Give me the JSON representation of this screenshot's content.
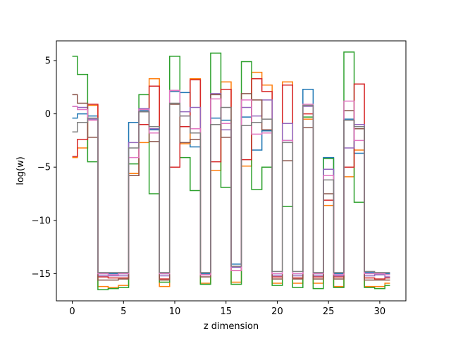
{
  "chart_data": {
    "type": "line",
    "drawstyle": "steps-mid",
    "xlabel": "z dimension",
    "ylabel": "log(w)",
    "xlim": [
      -1.55,
      32.55
    ],
    "ylim": [
      -17.55,
      6.85
    ],
    "xticks": [
      0,
      5,
      10,
      15,
      20,
      25,
      30
    ],
    "yticks": [
      5,
      0,
      -5,
      -10,
      -15
    ],
    "ytick_labels": [
      "5",
      "0",
      "−5",
      "−10",
      "−15"
    ],
    "grid": false,
    "legend": "none",
    "x": [
      0,
      1,
      2,
      3,
      4,
      5,
      6,
      7,
      8,
      9,
      10,
      11,
      12,
      13,
      14,
      15,
      16,
      17,
      18,
      19,
      20,
      21,
      22,
      23,
      24,
      25,
      26,
      27,
      28,
      29,
      30,
      31
    ],
    "series": [
      {
        "color": "#1f77b4",
        "values": [
          -0.4,
          0.0,
          -0.2,
          -15.0,
          -15.0,
          -15.0,
          -0.8,
          0.3,
          -1.5,
          -15.0,
          2.1,
          2.0,
          -3.1,
          -15.0,
          -0.4,
          -0.6,
          -14.1,
          -0.3,
          -3.4,
          -1.6,
          -15.0,
          -2.5,
          -15.0,
          2.3,
          -15.0,
          -4.1,
          -15.0,
          -0.5,
          -3.7,
          -14.9,
          -15.0,
          -15.0
        ]
      },
      {
        "color": "#ff7f0e",
        "values": [
          -4.1,
          -3.2,
          0.8,
          -16.2,
          -16.3,
          -16.1,
          -5.6,
          -2.7,
          3.3,
          -16.2,
          2.2,
          -2.8,
          3.3,
          -15.9,
          -5.3,
          3.0,
          -15.8,
          -4.9,
          3.9,
          2.7,
          -15.9,
          3.0,
          -15.9,
          -0.5,
          -15.9,
          -8.6,
          -16.2,
          -5.9,
          -3.4,
          -16.2,
          -16.2,
          -15.9
        ]
      },
      {
        "color": "#2ca02c",
        "values": [
          5.4,
          3.7,
          -4.5,
          -16.5,
          -16.4,
          -16.3,
          -4.7,
          1.8,
          -7.5,
          -15.8,
          5.4,
          -4.1,
          -7.2,
          -16.0,
          5.7,
          -6.9,
          -16.0,
          4.9,
          -7.1,
          -5.0,
          -16.1,
          -8.7,
          -16.3,
          -0.3,
          -16.4,
          -4.2,
          -16.3,
          5.8,
          -8.3,
          -16.3,
          -16.4,
          -16.1
        ]
      },
      {
        "color": "#d62728",
        "values": [
          -4.0,
          -2.4,
          0.9,
          -15.3,
          -15.4,
          -15.4,
          -5.8,
          -1.0,
          2.6,
          -15.5,
          -5.0,
          -1.2,
          3.2,
          -15.1,
          -4.5,
          2.3,
          -14.7,
          -4.3,
          3.3,
          2.1,
          -15.3,
          2.7,
          -15.4,
          0.0,
          -15.3,
          -8.1,
          -15.3,
          -5.0,
          2.8,
          -15.4,
          -15.5,
          -15.4
        ]
      },
      {
        "color": "#9467bd",
        "values": [
          0.7,
          0.6,
          -0.5,
          -15.2,
          -15.2,
          -15.2,
          -2.7,
          0.5,
          -1.4,
          -15.2,
          2.2,
          0.2,
          0.6,
          -15.1,
          1.9,
          -1.5,
          -14.4,
          0.6,
          -0.2,
          1.3,
          -15.2,
          -0.9,
          -15.2,
          0.7,
          -15.2,
          -5.2,
          -15.2,
          -3.2,
          -1.0,
          -15.2,
          -15.1,
          -15.3
        ]
      },
      {
        "color": "#8c564b",
        "values": [
          1.8,
          1.0,
          -2.2,
          -15.6,
          -15.6,
          -15.5,
          -5.8,
          0.2,
          -2.6,
          -15.6,
          0.9,
          -2.7,
          -2.4,
          -15.3,
          1.8,
          -2.2,
          -14.3,
          1.9,
          1.3,
          -1.5,
          -15.5,
          -4.4,
          -15.5,
          -1.3,
          -15.5,
          -7.5,
          -15.5,
          0.3,
          -1.4,
          -15.6,
          -15.6,
          -15.6
        ]
      },
      {
        "color": "#e377c2",
        "values": [
          0.7,
          0.4,
          -0.6,
          -15.0,
          -15.1,
          -15.0,
          -4.1,
          0.4,
          -1.8,
          -15.0,
          2.2,
          -0.2,
          -1.4,
          -15.1,
          1.4,
          -0.9,
          -14.7,
          1.3,
          -1.9,
          -1.8,
          -15.0,
          -2.5,
          -15.0,
          0.9,
          -15.0,
          -5.8,
          -15.1,
          1.2,
          -2.5,
          -15.0,
          -15.0,
          -15.1
        ]
      },
      {
        "color": "#7f7f7f",
        "values": [
          -1.7,
          -0.8,
          -0.4,
          -14.9,
          -14.9,
          -14.9,
          -3.2,
          0.2,
          -1.2,
          -14.9,
          1.0,
          -0.2,
          -1.8,
          -14.9,
          -1.0,
          0.6,
          -14.3,
          -1.1,
          -0.8,
          -0.5,
          -14.8,
          -2.7,
          -14.8,
          0.8,
          -14.9,
          -6.2,
          -14.9,
          -0.6,
          -1.2,
          -14.8,
          -14.9,
          -14.9
        ]
      }
    ]
  }
}
